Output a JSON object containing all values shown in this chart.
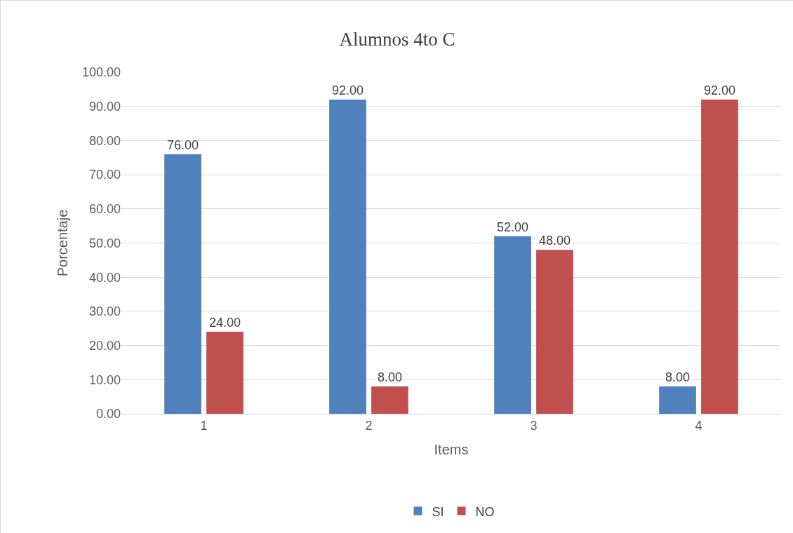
{
  "chart_data": {
    "type": "bar",
    "title": "Alumnos 4to C",
    "xlabel": "Items",
    "ylabel": "Porcentaje",
    "categories": [
      "1",
      "2",
      "3",
      "4"
    ],
    "series": [
      {
        "name": "SI",
        "color": "#4f81bd",
        "values": [
          76,
          92,
          52,
          8
        ],
        "value_labels": [
          "76.00",
          "92.00",
          "52.00",
          "8.00"
        ]
      },
      {
        "name": "NO",
        "color": "#c0504d",
        "values": [
          24,
          8,
          48,
          92
        ],
        "value_labels": [
          "24.00",
          "8.00",
          "48.00",
          "92.00"
        ]
      }
    ],
    "ylim": [
      0,
      100
    ],
    "yticks": [
      {
        "value": 0,
        "label": "0.00"
      },
      {
        "value": 10,
        "label": "10.00"
      },
      {
        "value": 20,
        "label": "20.00"
      },
      {
        "value": 30,
        "label": "30.00"
      },
      {
        "value": 40,
        "label": "40.00"
      },
      {
        "value": 50,
        "label": "50.00"
      },
      {
        "value": 60,
        "label": "60.00"
      },
      {
        "value": 70,
        "label": "70.00"
      },
      {
        "value": 80,
        "label": "80.00"
      },
      {
        "value": 90,
        "label": "90.00"
      },
      {
        "value": 100,
        "label": "100.00"
      }
    ],
    "grid": "y",
    "legend": "bottom"
  }
}
